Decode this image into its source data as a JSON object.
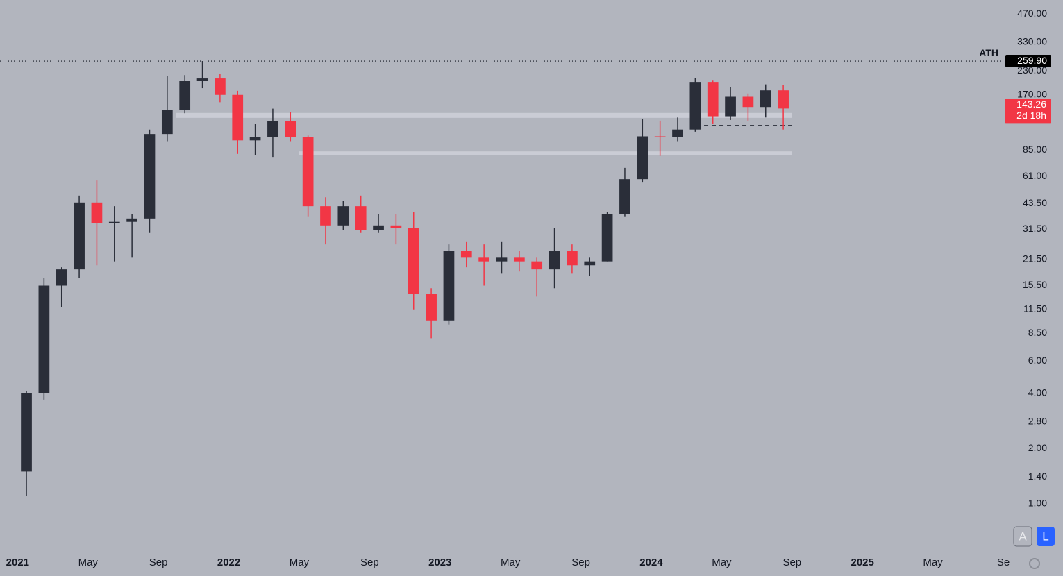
{
  "chart_data": {
    "type": "candlestick",
    "log_scale": true,
    "up_color": "#2a2e39",
    "down_color": "#f23645",
    "x": [
      "2021-01",
      "2021-02",
      "2021-03",
      "2021-04",
      "2021-05",
      "2021-06",
      "2021-07",
      "2021-08",
      "2021-09",
      "2021-10",
      "2021-11",
      "2021-12",
      "2022-01",
      "2022-02",
      "2022-03",
      "2022-04",
      "2022-05",
      "2022-06",
      "2022-07",
      "2022-08",
      "2022-09",
      "2022-10",
      "2022-11",
      "2022-12",
      "2023-01",
      "2023-02",
      "2023-03",
      "2023-04",
      "2023-05",
      "2023-06",
      "2023-07",
      "2023-08",
      "2023-09",
      "2023-10",
      "2023-11",
      "2023-12",
      "2024-01",
      "2024-02",
      "2024-03",
      "2024-04",
      "2024-05",
      "2024-06",
      "2024-07",
      "2024-08"
    ],
    "open": [
      1.5,
      4.0,
      15.5,
      19.0,
      44.0,
      34.0,
      34.5,
      36.0,
      104,
      141,
      203,
      209,
      170,
      96,
      100,
      122,
      100,
      42,
      33,
      42,
      31,
      33,
      32,
      14,
      10,
      24,
      22,
      21,
      22,
      21,
      19,
      24,
      20,
      21,
      38,
      59,
      101,
      100,
      110,
      200,
      130,
      166,
      146,
      180
    ],
    "high": [
      4.1,
      17.0,
      19.5,
      48.0,
      58.0,
      42.0,
      38.0,
      110,
      216,
      218,
      260,
      222,
      179,
      118,
      143,
      137,
      102,
      47,
      45,
      48,
      38,
      38,
      39,
      15,
      26,
      27,
      26,
      27,
      24,
      22,
      32,
      26,
      22,
      39,
      68,
      126,
      123,
      128,
      210,
      205,
      188,
      173,
      194,
      192
    ],
    "low": [
      1.1,
      3.7,
      11.8,
      17.0,
      20.0,
      21.0,
      22.0,
      30,
      95,
      135,
      185,
      155,
      81,
      80,
      78,
      95,
      37,
      26,
      31,
      30,
      30,
      26,
      11.5,
      8.0,
      9.5,
      19.5,
      15.5,
      18,
      18.5,
      13.5,
      15,
      18,
      17.5,
      21,
      37,
      57,
      79,
      95,
      107,
      118,
      124,
      123,
      128,
      110
    ],
    "close": [
      4.0,
      15.5,
      19.0,
      44.0,
      34.0,
      34.5,
      36.0,
      104,
      141,
      203,
      209,
      170,
      96,
      100,
      122,
      100,
      42,
      33,
      42,
      31,
      33,
      32,
      14,
      10,
      24,
      22,
      21,
      22,
      21,
      19,
      24,
      20,
      21,
      38,
      59,
      101,
      100,
      110,
      200,
      130,
      166,
      146,
      180,
      143.26
    ],
    "ylim": [
      0.572,
      560
    ],
    "yticks": [
      {
        "value": 1,
        "label": "1.00"
      },
      {
        "value": 1.4,
        "label": "1.40"
      },
      {
        "value": 2,
        "label": "2.00"
      },
      {
        "value": 2.8,
        "label": "2.80"
      },
      {
        "value": 4,
        "label": "4.00"
      },
      {
        "value": 6,
        "label": "6.00"
      },
      {
        "value": 8.5,
        "label": "8.50"
      },
      {
        "value": 11.5,
        "label": "11.50"
      },
      {
        "value": 15.5,
        "label": "15.50"
      },
      {
        "value": 21.5,
        "label": "21.50"
      },
      {
        "value": 31.5,
        "label": "31.50"
      },
      {
        "value": 43.5,
        "label": "43.50"
      },
      {
        "value": 61,
        "label": "61.00"
      },
      {
        "value": 85,
        "label": "85.00"
      },
      {
        "value": 170,
        "label": "170.00"
      },
      {
        "value": 230,
        "label": "230.00"
      },
      {
        "value": 330,
        "label": "330.00"
      },
      {
        "value": 470,
        "label": "470.00"
      }
    ],
    "xlim": [
      "2020-12",
      "2025-09"
    ],
    "xticks": [
      {
        "value": "2021-01",
        "label": "2021"
      },
      {
        "value": "2021-05",
        "label": "May"
      },
      {
        "value": "2021-09",
        "label": "Sep"
      },
      {
        "value": "2022-01",
        "label": "2022"
      },
      {
        "value": "2022-05",
        "label": "May"
      },
      {
        "value": "2022-09",
        "label": "Sep"
      },
      {
        "value": "2023-01",
        "label": "2023"
      },
      {
        "value": "2023-05",
        "label": "May"
      },
      {
        "value": "2023-09",
        "label": "Sep"
      },
      {
        "value": "2024-01",
        "label": "2024"
      },
      {
        "value": "2024-05",
        "label": "May"
      },
      {
        "value": "2024-09",
        "label": "Sep"
      },
      {
        "value": "2025-01",
        "label": "2025"
      },
      {
        "value": "2025-05",
        "label": "May"
      },
      {
        "value": "2025-09",
        "label": "Se"
      }
    ],
    "ath": {
      "name": "ATH",
      "value": 259.9,
      "label": "259.90"
    },
    "countdown": "2d 18h",
    "zones": [
      {
        "low": 127.4,
        "high": 135.5,
        "from": "2021-10",
        "to": "2024-09"
      },
      {
        "low": 79.6,
        "high": 83.6,
        "from": "2022-05",
        "to": "2024-09"
      }
    ],
    "support": {
      "value": 115.8,
      "from": "2024-04",
      "to": "2024-09"
    }
  },
  "ui": {
    "buttons": [
      "A",
      "L"
    ]
  }
}
